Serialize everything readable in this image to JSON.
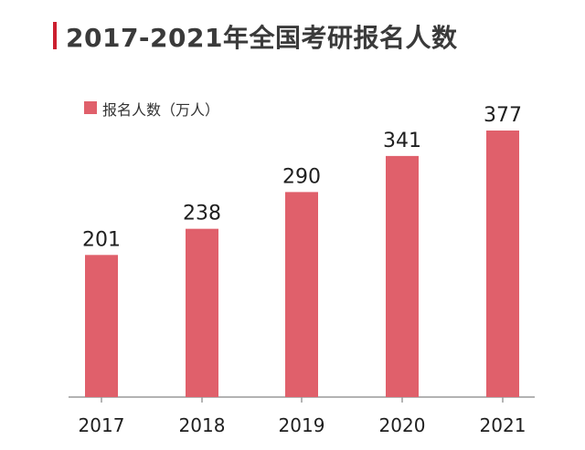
{
  "title": "2017-2021年全国考研报名人数",
  "colors": {
    "accent": "#cc1f2f",
    "bar": "#e0606b",
    "axis": "#9a9a9a"
  },
  "chart_data": {
    "type": "bar",
    "title": "2017-2021年全国考研报名人数",
    "categories": [
      "2017",
      "2018",
      "2019",
      "2020",
      "2021"
    ],
    "series": [
      {
        "name": "报名人数（万人）",
        "values": [
          201,
          238,
          290,
          341,
          377
        ]
      }
    ],
    "ylim": [
      0,
      400
    ],
    "grid": false,
    "legend_position": "top-left"
  }
}
